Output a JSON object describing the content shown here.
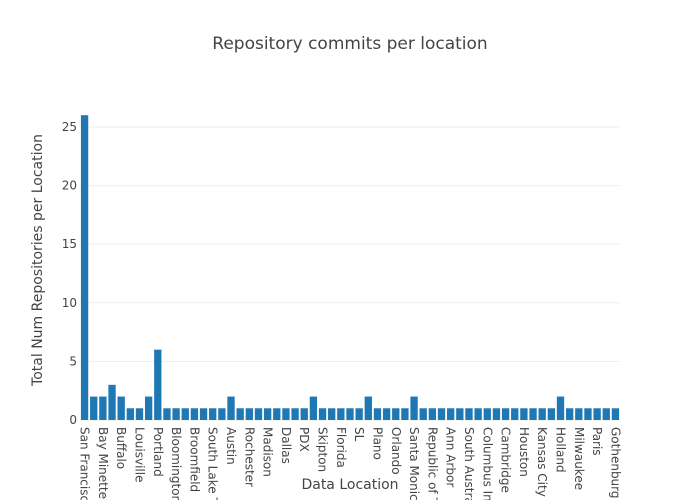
{
  "chart_data": {
    "type": "bar",
    "title": "Repository commits per location",
    "x_label": "Data Location",
    "y_label": "Total Num Repositories per Location",
    "categories": [
      "San Francisco",
      null,
      "Bay Minette",
      null,
      "Buffalo",
      null,
      "Louisville",
      null,
      "Portland",
      null,
      "Bloomington",
      null,
      "Broomfield",
      null,
      "South Lake T...",
      null,
      "Austin",
      null,
      "Rochester",
      null,
      "Madison",
      null,
      "Dallas",
      null,
      "PDX",
      null,
      "Skipton",
      null,
      "Florida",
      null,
      "SL",
      null,
      "Plano",
      null,
      "Orlando",
      null,
      "Santa Monica",
      null,
      "Republic of T...",
      null,
      "Ann Arbor",
      null,
      "South Austra...",
      null,
      "Columbus In...",
      null,
      "Cambridge",
      null,
      "Houston",
      null,
      "Kansas City",
      null,
      "Holland",
      null,
      "Milwaukee",
      null,
      "Paris",
      null,
      "Gothenburg"
    ],
    "values": [
      26,
      2,
      2,
      3,
      2,
      1,
      1,
      2,
      6,
      1,
      1,
      1,
      1,
      1,
      1,
      1,
      2,
      1,
      1,
      1,
      1,
      1,
      1,
      1,
      1,
      2,
      1,
      1,
      1,
      1,
      1,
      2,
      1,
      1,
      1,
      1,
      2,
      1,
      1,
      1,
      1,
      1,
      1,
      1,
      1,
      1,
      1,
      1,
      1,
      1,
      1,
      1,
      2,
      1,
      1,
      1,
      1,
      1,
      1
    ],
    "color": "#1f77b4",
    "ylim": [
      0,
      27.3
    ],
    "yticks": [
      0,
      5,
      10,
      15,
      20,
      25
    ],
    "grid": true
  }
}
